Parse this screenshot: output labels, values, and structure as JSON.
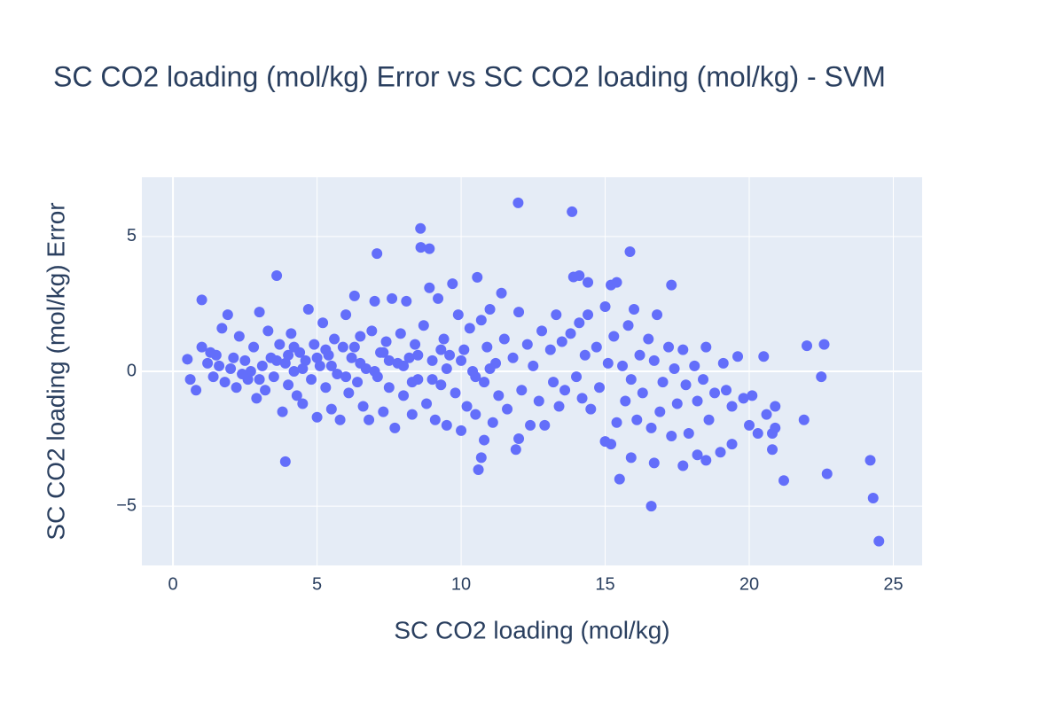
{
  "chart_data": {
    "type": "scatter",
    "title": "SC CO2 loading (mol/kg) Error vs SC CO2 loading (mol/kg) - SVM",
    "x_label": "SC CO2 loading (mol/kg)",
    "y_label": "SC CO2 loading (mol/kg) Error",
    "color": "#636efa",
    "grid": true,
    "xlim": [
      -1.08,
      26.0
    ],
    "ylim": [
      -7.2,
      7.2
    ],
    "xticks": [
      0,
      5,
      10,
      15,
      20,
      25
    ],
    "yticks": [
      {
        "value": -5,
        "label": "−5"
      },
      0,
      5
    ],
    "x": [
      11.98,
      13.85,
      8.59,
      8.6,
      8.9,
      7.08,
      15.86,
      3.6,
      10.56,
      13.9,
      14.1,
      14.4,
      15.2,
      15.4,
      17.3,
      1.0,
      22.6,
      22.0,
      20.5,
      22.5,
      21.9,
      21.2,
      22.7,
      24.2,
      24.3,
      24.5,
      16.6,
      15.5,
      17.7,
      3.9,
      10.6,
      10.7,
      20.8,
      20.8,
      19.4,
      19.0,
      18.5,
      18.2,
      15.9,
      16.7,
      11.9,
      12.0,
      10.8,
      0.5,
      0.8,
      0.6,
      1.0,
      1.2,
      1.4,
      1.5,
      1.7,
      1.9,
      1.8,
      2.0,
      2.2,
      2.3,
      2.5,
      2.6,
      2.8,
      2.9,
      3.0,
      3.1,
      3.2,
      3.3,
      3.4,
      3.5,
      3.7,
      3.8,
      3.9,
      4.0,
      4.1,
      4.2,
      4.3,
      4.4,
      4.5,
      4.6,
      4.7,
      4.8,
      4.9,
      5.0,
      5.1,
      5.2,
      5.3,
      5.4,
      5.5,
      5.6,
      5.7,
      5.8,
      5.9,
      6.0,
      6.1,
      6.2,
      6.3,
      6.4,
      6.5,
      6.6,
      6.7,
      6.8,
      6.9,
      7.0,
      7.1,
      7.2,
      7.3,
      7.4,
      7.5,
      7.6,
      7.7,
      7.8,
      7.9,
      8.0,
      8.1,
      8.2,
      8.3,
      8.4,
      8.5,
      8.7,
      8.8,
      8.9,
      9.0,
      9.1,
      9.2,
      9.3,
      9.4,
      9.5,
      9.6,
      9.7,
      9.8,
      9.9,
      10.0,
      10.1,
      10.2,
      10.3,
      10.4,
      10.5,
      10.7,
      10.8,
      10.9,
      11.0,
      11.1,
      11.2,
      11.3,
      11.4,
      11.5,
      11.6,
      11.8,
      12.0,
      12.1,
      12.3,
      12.4,
      12.5,
      12.7,
      12.8,
      12.9,
      13.1,
      13.2,
      13.3,
      13.4,
      13.5,
      13.6,
      13.8,
      14.0,
      14.1,
      14.2,
      14.3,
      14.4,
      14.5,
      14.7,
      14.8,
      15.0,
      15.0,
      15.1,
      15.2,
      15.3,
      15.4,
      15.6,
      15.7,
      15.8,
      15.9,
      16.0,
      16.1,
      16.2,
      16.3,
      16.5,
      16.6,
      16.7,
      16.8,
      16.9,
      17.0,
      17.2,
      17.3,
      17.4,
      17.5,
      17.7,
      17.8,
      17.9,
      18.1,
      18.2,
      18.4,
      18.5,
      18.6,
      18.8,
      19.1,
      19.2,
      19.4,
      19.6,
      19.8,
      20.0,
      20.1,
      20.3,
      20.6,
      20.9,
      20.9,
      2.1,
      2.7,
      3.6,
      4.0,
      4.5,
      5.0,
      5.5,
      6.0,
      6.5,
      7.0,
      7.5,
      8.0,
      8.5,
      9.0,
      9.5,
      10.0,
      10.5,
      11.0,
      3.0,
      4.2,
      5.3,
      6.3,
      7.3,
      8.3,
      9.3,
      2.4,
      1.6,
      1.3
    ],
    "values": [
      6.25,
      5.92,
      5.3,
      4.6,
      4.55,
      4.37,
      4.44,
      3.55,
      3.49,
      3.5,
      3.55,
      3.3,
      3.2,
      3.3,
      3.2,
      2.65,
      1.0,
      0.95,
      0.55,
      -0.2,
      -1.8,
      -4.05,
      -3.8,
      -3.3,
      -4.7,
      -6.3,
      -5.0,
      -4.0,
      -3.5,
      -3.35,
      -3.65,
      -3.2,
      -2.3,
      -2.9,
      -2.7,
      -3.0,
      -3.3,
      -3.1,
      -3.2,
      -3.4,
      -2.9,
      -2.5,
      -2.55,
      0.45,
      -0.7,
      -0.3,
      0.9,
      0.3,
      -0.2,
      0.6,
      1.6,
      2.1,
      -0.4,
      0.1,
      -0.6,
      1.3,
      0.4,
      -0.3,
      0.9,
      -1.0,
      2.2,
      0.2,
      -0.7,
      1.5,
      0.5,
      -0.2,
      1.0,
      -1.5,
      0.3,
      -0.5,
      1.4,
      0.0,
      -0.9,
      0.7,
      -1.2,
      0.4,
      2.3,
      -0.3,
      1.0,
      -1.7,
      0.2,
      1.8,
      -0.6,
      0.6,
      -1.4,
      1.2,
      -0.1,
      -1.8,
      0.9,
      2.1,
      -0.8,
      0.5,
      2.8,
      -0.4,
      1.3,
      -1.3,
      0.1,
      -1.8,
      1.5,
      2.6,
      -0.2,
      0.7,
      -1.5,
      1.1,
      -0.6,
      2.7,
      -2.1,
      0.3,
      1.4,
      -0.9,
      2.6,
      0.5,
      -1.6,
      1.0,
      -0.3,
      1.7,
      -1.2,
      3.1,
      0.4,
      -1.8,
      2.7,
      -0.5,
      1.2,
      -2.0,
      0.6,
      3.25,
      -0.8,
      2.1,
      -2.2,
      0.8,
      -1.3,
      1.6,
      0.0,
      -1.6,
      1.9,
      -0.4,
      0.9,
      2.3,
      -1.9,
      0.3,
      -0.9,
      2.9,
      1.2,
      -1.4,
      0.5,
      2.2,
      -0.7,
      1.0,
      -2.0,
      0.2,
      -1.1,
      1.5,
      -2.0,
      0.8,
      -0.4,
      2.1,
      -1.3,
      1.1,
      -0.7,
      1.4,
      -0.2,
      1.8,
      -1.0,
      0.6,
      2.1,
      -1.4,
      0.9,
      -0.6,
      2.4,
      -2.6,
      0.3,
      -2.7,
      1.3,
      -1.9,
      0.2,
      -1.1,
      1.7,
      -0.3,
      2.3,
      -1.8,
      0.6,
      -0.8,
      1.2,
      -2.1,
      0.4,
      2.1,
      -1.5,
      -0.4,
      0.9,
      -2.4,
      0.1,
      -1.2,
      0.8,
      -0.5,
      -2.3,
      0.2,
      -1.1,
      -0.3,
      0.9,
      -1.8,
      -0.8,
      0.3,
      -0.7,
      -1.3,
      0.55,
      -1.0,
      -2.0,
      -0.9,
      -2.3,
      -1.6,
      -1.3,
      -2.1,
      0.5,
      0.0,
      0.4,
      0.6,
      0.1,
      0.5,
      0.2,
      -0.2,
      0.3,
      0.0,
      0.4,
      0.2,
      0.6,
      -0.3,
      0.1,
      0.4,
      -0.2,
      0.1,
      -0.3,
      0.9,
      0.8,
      0.9,
      0.7,
      -0.4,
      0.8,
      -0.1,
      0.2,
      0.7
    ]
  }
}
